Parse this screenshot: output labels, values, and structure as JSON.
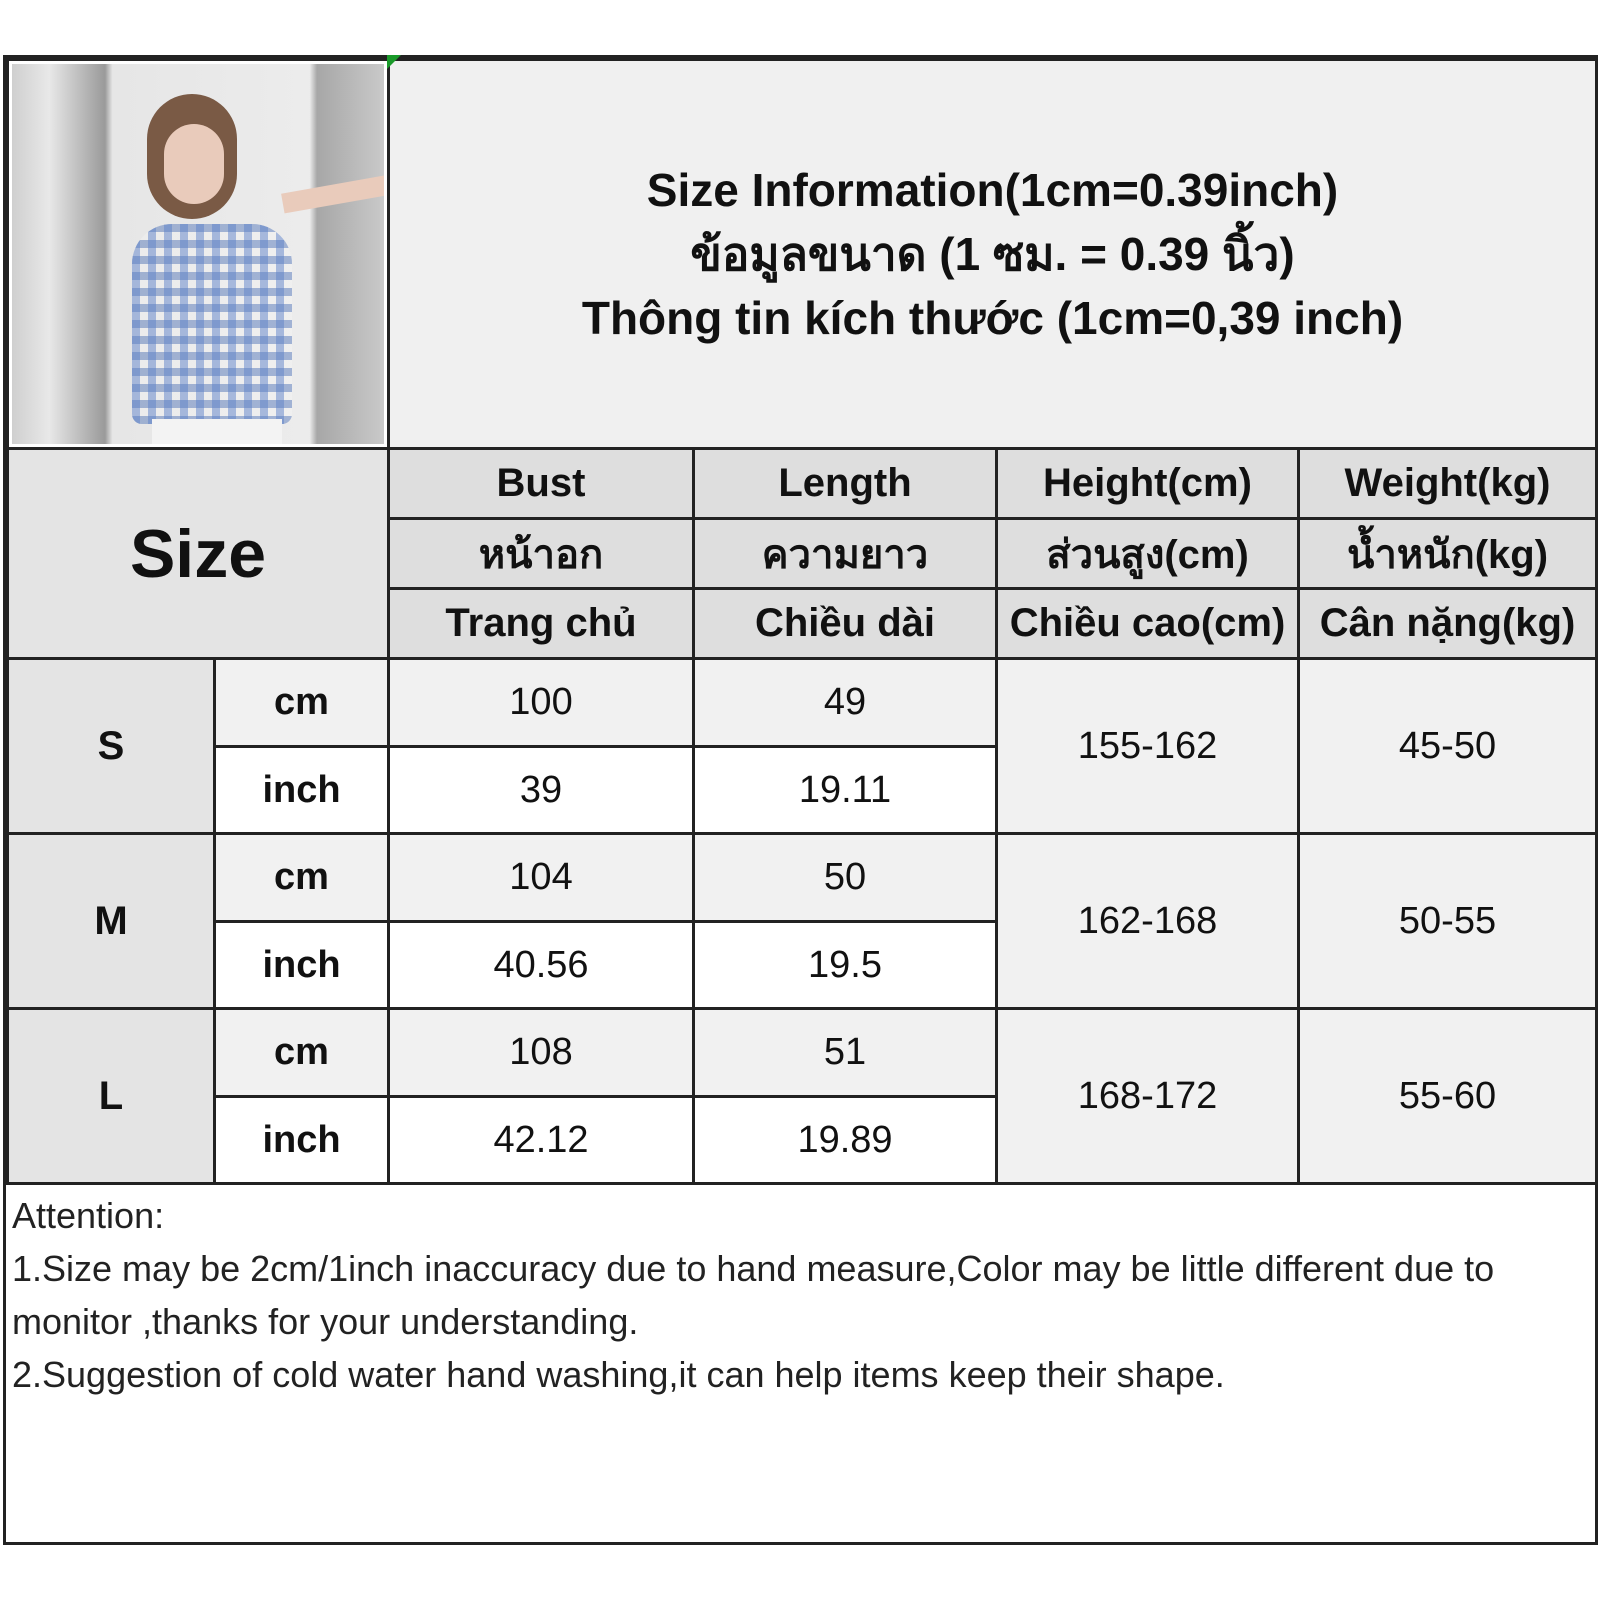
{
  "title": {
    "line_en": "Size Information(1cm=0.39inch)",
    "line_th": "ข้อมูลขนาด (1 ซม. = 0.39 นิ้ว)",
    "line_vi": "Thông tin kích thước (1cm=0,39 inch)"
  },
  "table": {
    "size_label": "Size",
    "columns": [
      {
        "en": "Bust",
        "th": "หน้าอก",
        "vi": "Trang chủ"
      },
      {
        "en": "Length",
        "th": "ความยาว",
        "vi": "Chiều dài"
      },
      {
        "en": "Height(cm)",
        "th": "ส่วนสูง(cm)",
        "vi": "Chiều cao(cm)"
      },
      {
        "en": "Weight(kg)",
        "th": "น้ำหนัก(kg)",
        "vi": "Cân nặng(kg)"
      }
    ],
    "rows": [
      {
        "size": "S",
        "cm_label": "cm",
        "inch_label": "inch",
        "bust_cm": "100",
        "length_cm": "49",
        "bust_inch": "39",
        "length_inch": "19.11",
        "height": "155-162",
        "weight": "45-50"
      },
      {
        "size": "M",
        "cm_label": "cm",
        "inch_label": "inch",
        "bust_cm": "104",
        "length_cm": "50",
        "bust_inch": "40.56",
        "length_inch": "19.5",
        "height": "162-168",
        "weight": "50-55"
      },
      {
        "size": "L",
        "cm_label": "cm",
        "inch_label": "inch",
        "bust_cm": "108",
        "length_cm": "51",
        "bust_inch": "42.12",
        "length_inch": "19.89",
        "height": "168-172",
        "weight": "55-60"
      }
    ]
  },
  "attention": {
    "heading": "Attention:",
    "note1": "1.Size may be 2cm/1inch inaccuracy due to hand measure,Color may be little different due to monitor ,thanks for your understanding.",
    "note2": "2.Suggestion of cold water hand washing,it can help items keep their shape."
  },
  "colors": {
    "header_bg": "#dedede",
    "cm_row_bg": "#f1f1f1",
    "border": "#222222",
    "shirt_check": "#8aa4d6"
  }
}
